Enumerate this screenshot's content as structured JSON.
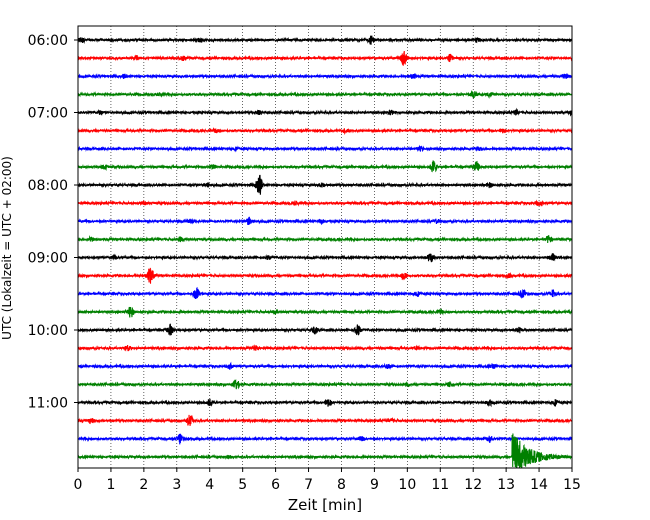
{
  "chart_data": {
    "type": "line",
    "title": "",
    "xlabel": "Zeit  [min]",
    "ylabel": "UTC (Lokalzeit = UTC + 02:00)",
    "xlim": [
      0,
      15
    ],
    "x_ticks": [
      0,
      1,
      2,
      3,
      4,
      5,
      6,
      7,
      8,
      9,
      10,
      11,
      12,
      13,
      14,
      15
    ],
    "y_tick_labels": [
      "06:00",
      "07:00",
      "08:00",
      "09:00",
      "10:00",
      "11:00"
    ],
    "grid": "vertical dotted at each minute",
    "trace_colors": [
      "#000000",
      "#ff0000",
      "#0000ff",
      "#008000"
    ],
    "traces": [
      {
        "start": "06:00",
        "color": "#000000",
        "events": [
          [
            0.1,
            0.35
          ],
          [
            3.7,
            0.25
          ],
          [
            8.9,
            0.55
          ],
          [
            12.1,
            0.3
          ]
        ]
      },
      {
        "start": "06:15",
        "color": "#ff0000",
        "events": [
          [
            1.8,
            0.3
          ],
          [
            3.2,
            0.3
          ],
          [
            9.9,
            1.0
          ],
          [
            11.3,
            0.45
          ]
        ]
      },
      {
        "start": "06:30",
        "color": "#0000ff",
        "events": [
          [
            1.4,
            0.25
          ],
          [
            10.2,
            0.3
          ],
          [
            14.8,
            0.35
          ]
        ]
      },
      {
        "start": "06:45",
        "color": "#008000",
        "events": [
          [
            2.5,
            0.2
          ],
          [
            12.0,
            0.45
          ],
          [
            12.5,
            0.3
          ]
        ]
      },
      {
        "start": "07:00",
        "color": "#000000",
        "events": [
          [
            0.7,
            0.3
          ],
          [
            5.5,
            0.25
          ],
          [
            9.5,
            0.3
          ],
          [
            13.3,
            0.3
          ],
          [
            15.0,
            0.35
          ]
        ]
      },
      {
        "start": "07:15",
        "color": "#ff0000",
        "events": [
          [
            4.2,
            0.2
          ],
          [
            8.1,
            0.25
          ],
          [
            12.9,
            0.25
          ]
        ]
      },
      {
        "start": "07:30",
        "color": "#0000ff",
        "events": [
          [
            4.8,
            0.2
          ],
          [
            10.4,
            0.25
          ],
          [
            12.2,
            0.25
          ]
        ]
      },
      {
        "start": "07:45",
        "color": "#008000",
        "events": [
          [
            0.8,
            0.25
          ],
          [
            4.1,
            0.3
          ],
          [
            10.8,
            0.9
          ],
          [
            12.1,
            0.65
          ]
        ]
      },
      {
        "start": "08:00",
        "color": "#000000",
        "events": [
          [
            3.9,
            0.3
          ],
          [
            5.5,
            1.6
          ],
          [
            7.4,
            0.3
          ],
          [
            12.5,
            0.3
          ]
        ]
      },
      {
        "start": "08:15",
        "color": "#ff0000",
        "events": [
          [
            2.0,
            0.2
          ],
          [
            6.6,
            0.25
          ],
          [
            14.0,
            0.35
          ]
        ]
      },
      {
        "start": "08:30",
        "color": "#0000ff",
        "events": [
          [
            3.4,
            0.25
          ],
          [
            5.2,
            0.55
          ],
          [
            7.4,
            0.25
          ],
          [
            10.9,
            0.25
          ]
        ]
      },
      {
        "start": "08:45",
        "color": "#008000",
        "events": [
          [
            0.4,
            0.25
          ],
          [
            3.1,
            0.3
          ],
          [
            14.3,
            0.55
          ]
        ]
      },
      {
        "start": "09:00",
        "color": "#000000",
        "events": [
          [
            1.1,
            0.25
          ],
          [
            5.8,
            0.3
          ],
          [
            10.7,
            0.65
          ],
          [
            14.4,
            0.5
          ]
        ]
      },
      {
        "start": "09:15",
        "color": "#ff0000",
        "events": [
          [
            2.2,
            1.4
          ],
          [
            9.9,
            0.45
          ],
          [
            13.1,
            0.25
          ]
        ]
      },
      {
        "start": "09:30",
        "color": "#0000ff",
        "events": [
          [
            3.6,
            0.8
          ],
          [
            10.3,
            0.3
          ],
          [
            13.5,
            0.65
          ],
          [
            14.4,
            0.55
          ]
        ]
      },
      {
        "start": "09:45",
        "color": "#008000",
        "events": [
          [
            1.6,
            0.75
          ],
          [
            6.0,
            0.3
          ],
          [
            11.0,
            0.25
          ]
        ]
      },
      {
        "start": "10:00",
        "color": "#000000",
        "events": [
          [
            2.8,
            0.75
          ],
          [
            7.2,
            0.5
          ],
          [
            8.5,
            0.75
          ],
          [
            13.4,
            0.35
          ]
        ]
      },
      {
        "start": "10:15",
        "color": "#ff0000",
        "events": [
          [
            1.5,
            0.3
          ],
          [
            5.4,
            0.3
          ],
          [
            10.3,
            0.25
          ]
        ]
      },
      {
        "start": "10:30",
        "color": "#0000ff",
        "events": [
          [
            4.6,
            0.35
          ],
          [
            9.4,
            0.25
          ],
          [
            12.6,
            0.3
          ]
        ]
      },
      {
        "start": "10:45",
        "color": "#008000",
        "events": [
          [
            4.8,
            0.75
          ],
          [
            10.0,
            0.3
          ],
          [
            11.3,
            0.3
          ]
        ]
      },
      {
        "start": "11:00",
        "color": "#000000",
        "events": [
          [
            4.0,
            0.45
          ],
          [
            7.6,
            0.5
          ],
          [
            12.5,
            0.4
          ],
          [
            14.5,
            0.4
          ]
        ]
      },
      {
        "start": "11:15",
        "color": "#ff0000",
        "events": [
          [
            0.4,
            0.3
          ],
          [
            3.4,
            1.0
          ],
          [
            9.5,
            0.25
          ]
        ]
      },
      {
        "start": "11:30",
        "color": "#0000ff",
        "events": [
          [
            3.1,
            0.8
          ],
          [
            8.6,
            0.25
          ],
          [
            12.5,
            0.45
          ]
        ]
      },
      {
        "start": "11:45",
        "color": "#008000",
        "events": [
          [
            4.6,
            0.2
          ],
          [
            13.2,
            3.5
          ]
        ]
      }
    ]
  }
}
